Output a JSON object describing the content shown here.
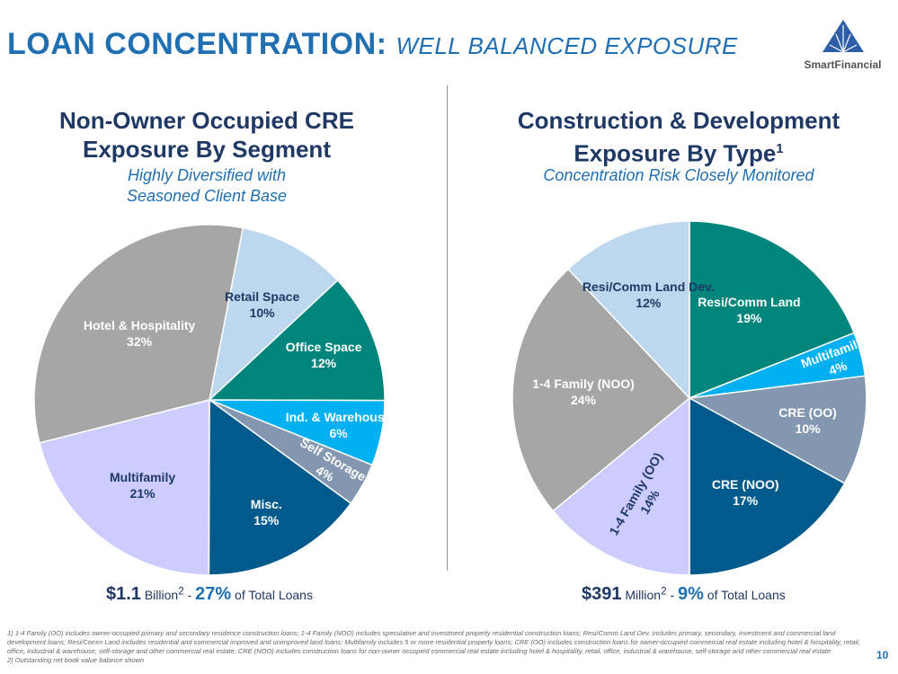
{
  "title": {
    "main": "LOAN CONCENTRATION:",
    "sub": "WELL BALANCED EXPOSURE"
  },
  "logo": {
    "name": "SmartFinancial"
  },
  "left": {
    "heading1": "Non-Owner Occupied CRE",
    "heading2": "Exposure By Segment",
    "sub1": "Highly Diversified with",
    "sub2": "Seasoned Client Base",
    "total_amount": "$1.1",
    "total_unit": "Billion",
    "total_sup": "2",
    "total_sep": " - ",
    "total_pct": "27%",
    "total_suffix": " of Total Loans"
  },
  "right": {
    "heading1": "Construction & Development",
    "heading2": "Exposure By Type",
    "heading_sup": "1",
    "sub1": "Concentration Risk Closely Monitored",
    "total_amount": "$391",
    "total_unit": "Million",
    "total_sup": "2",
    "total_sep": " - ",
    "total_pct": "9%",
    "total_suffix": " of Total Loans"
  },
  "chart_data": [
    {
      "type": "pie",
      "title": "Non-Owner Occupied CRE Exposure By Segment",
      "slices": [
        {
          "label": "Retail Space",
          "value": 10,
          "color": "#bdd7ee",
          "text": "#1f3864"
        },
        {
          "label": "Office Space",
          "value": 12,
          "color": "#00857c",
          "text": "#ffffff"
        },
        {
          "label": "Ind. & Warehouse",
          "value": 6,
          "color": "#00b0f0",
          "text": "#ffffff"
        },
        {
          "label": "Self Storage",
          "value": 4,
          "color": "#8497b0",
          "text": "#ffffff"
        },
        {
          "label": "Misc.",
          "value": 15,
          "color": "#005a8c",
          "text": "#ffffff"
        },
        {
          "label": "Multifamily",
          "value": 21,
          "color": "#ccccff",
          "text": "#1f3864"
        },
        {
          "label": "Hotel & Hospitality",
          "value": 32,
          "color": "#a6a6a6",
          "text": "#ffffff"
        }
      ]
    },
    {
      "type": "pie",
      "title": "Construction & Development Exposure By Type",
      "slices": [
        {
          "label": "Resi/Comm Land",
          "value": 19,
          "color": "#00857c",
          "text": "#ffffff"
        },
        {
          "label": "Multifamily",
          "value": 4,
          "color": "#00b0f0",
          "text": "#ffffff"
        },
        {
          "label": "CRE (OO)",
          "value": 10,
          "color": "#8497b0",
          "text": "#ffffff"
        },
        {
          "label": "CRE (NOO)",
          "value": 17,
          "color": "#005a8c",
          "text": "#ffffff"
        },
        {
          "label": "1-4 Family (OO)",
          "value": 14,
          "color": "#ccccff",
          "text": "#1f3864"
        },
        {
          "label": "1-4 Family (NOO)",
          "value": 24,
          "color": "#a6a6a6",
          "text": "#ffffff"
        },
        {
          "label": "Resi/Comm Land Dev.",
          "value": 12,
          "color": "#bdd7ee",
          "text": "#1f3864"
        }
      ]
    }
  ],
  "footnotes": {
    "n1": "1)  1-4 Family (OO) includes owner-occupied primary and secondary residence construction loans; 1-4 Family (NOO) includes speculative and investment property residential construction loans; Resi/Comm Land Dev. includes primary, secondary, investment and commercial land development loans; Resi/Comm Land includes residential and commercial improved and unimproved land loans; Multifamily includes 5 or more residential property loans; CRE (OO) includes construction loans for owner-occupied commercial real estate including hotel & hospitality, retail, office, industrial & warehouse, self-storage and other commercial real estate; CRE (NOO) includes construction loans for non-owner occupied commercial real estate including hotel & hospitality, retail, office, industrial & warehouse, self-storage and other commercial real estate",
    "n2": "2)  Outstanding net book value balance shown"
  },
  "page_number": "10"
}
